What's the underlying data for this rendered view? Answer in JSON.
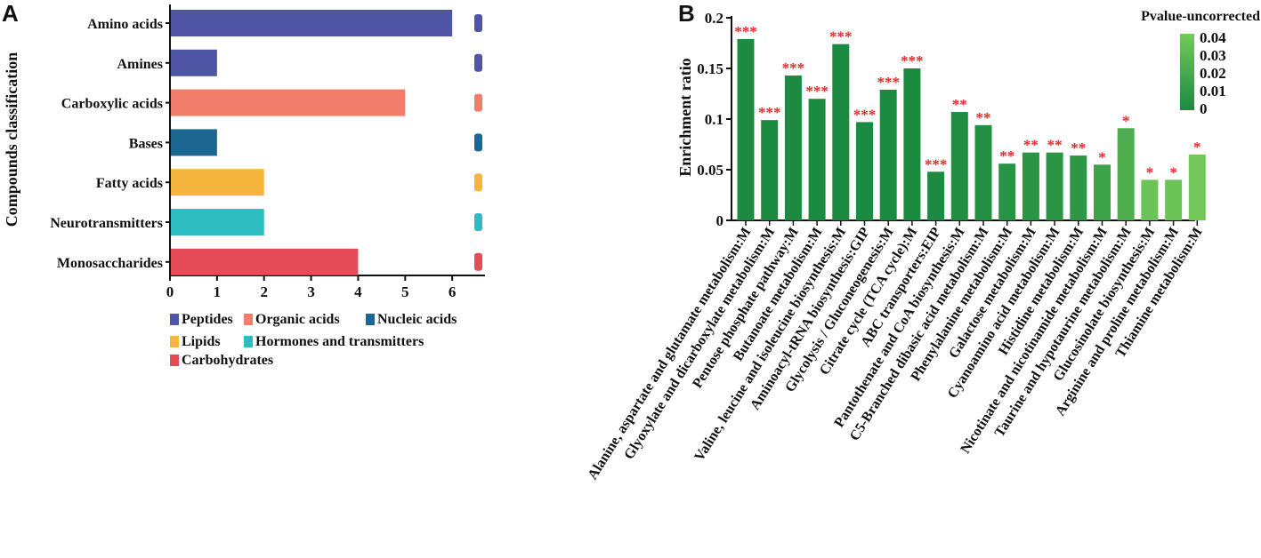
{
  "panel_a_letter": "A",
  "panel_b_letter": "B",
  "chart_data": [
    {
      "type": "bar",
      "orientation": "horizontal",
      "categories": [
        "Amino acids",
        "Amines",
        "Carboxylic acids",
        "Bases",
        "Fatty acids",
        "Neurotransmitters",
        "Monosaccharides"
      ],
      "values": [
        6,
        1,
        5,
        1,
        2,
        2,
        4
      ],
      "groups": [
        "Peptides",
        "Peptides",
        "Organic acids",
        "Nucleic acids",
        "Lipids",
        "Hormones and transmitters",
        "Carbohydrates"
      ],
      "ylabel": "Compounds classification",
      "xlabel": "",
      "xlim": [
        0,
        6.5
      ],
      "xticks": [
        "0",
        "1",
        "2",
        "3",
        "4",
        "5",
        "6"
      ],
      "legend": [
        {
          "label": "Peptides",
          "color": "#4f54a5"
        },
        {
          "label": "Organic acids",
          "color": "#f17d6a"
        },
        {
          "label": "Nucleic acids",
          "color": "#1b6791"
        },
        {
          "label": "Lipids",
          "color": "#f6b63d"
        },
        {
          "label": "Hormones and transmitters",
          "color": "#2dbdc1"
        },
        {
          "label": "Carbohydrates",
          "color": "#e54c58"
        }
      ],
      "legend_position": "bottom",
      "grid": false
    },
    {
      "type": "bar",
      "categories": [
        "Alanine, aspartate and glutamate metabolism:M",
        "Glyoxylate and dicarboxylate metabolism:M",
        "Pentose phosphate pathway:M",
        "Butanoate metabolism:M",
        "Valine, leucine and isoleucine biosynthesis:M",
        "Aminoacyl-tRNA biosynthesis:GIP",
        "Glycolysis / Gluconeogenesis:M",
        "Citrate cycle (TCA cycle):M",
        "ABC transporters:EIP",
        "Pantothenate and CoA biosynthesis:M",
        "C5-Branched dibasic acid metabolism:M",
        "Phenylalanine metabolism:M",
        "Galactose metabolism:M",
        "Cyanoamino acid metabolism:M",
        "Histidine metabolism:M",
        "Nicotinate and nicotinamide metabolism:M",
        "Taurine and hypotaurine metabolism:M",
        "Glucosinolate biosynthesis:M",
        "Arginine and proline metabolism:M",
        "Thiamine metabolism:M"
      ],
      "values": [
        0.179,
        0.099,
        0.143,
        0.12,
        0.174,
        0.097,
        0.129,
        0.15,
        0.048,
        0.107,
        0.094,
        0.056,
        0.067,
        0.067,
        0.064,
        0.055,
        0.091,
        0.04,
        0.04,
        0.065
      ],
      "pvalues": [
        0.0,
        0.0,
        0.0,
        0.0,
        0.0,
        0.0,
        0.0,
        0.0,
        0.0,
        0.002,
        0.003,
        0.006,
        0.007,
        0.007,
        0.008,
        0.015,
        0.022,
        0.036,
        0.036,
        0.039
      ],
      "significance": [
        "***",
        "***",
        "***",
        "***",
        "***",
        "***",
        "***",
        "***",
        "***",
        "**",
        "**",
        "**",
        "**",
        "**",
        "**",
        "*",
        "*",
        "*",
        "*",
        "*"
      ],
      "ylabel": "Enrichment ratio",
      "xlabel": "",
      "ylim": [
        0,
        0.2
      ],
      "yticks": [
        "0",
        "0.05",
        "0.1",
        "0.15",
        "0.2"
      ],
      "colorbar": {
        "title": "Pvalue-uncorrected",
        "range": [
          0,
          0.04
        ],
        "ticks": [
          "0",
          "0.01",
          "0.02",
          "0.03",
          "0.04"
        ],
        "color_low": "#1c8a41",
        "color_high": "#75c95a"
      },
      "legend_position": "top-right",
      "grid": false
    }
  ]
}
